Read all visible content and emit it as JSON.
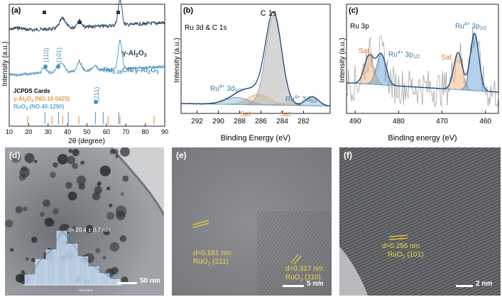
{
  "panel_a": {
    "label": "(a)",
    "ylabel": "Intensity (a.u.)",
    "xlabel": "2θ (degree)",
    "xticks": [
      "10",
      "20",
      "30",
      "40",
      "50",
      "60",
      "70",
      "80",
      "90"
    ],
    "legend_top_prefix": "γ-Al",
    "legend_top_sub1": "2",
    "legend_top_mid": "O",
    "legend_top_sub2": "3",
    "legend_bottom_prefix": "Ru",
    "legend_bottom_sub": "0.38",
    "legend_bottom_suffix": "CN/γ-Al",
    "legend_bottom_sub2": "2",
    "legend_bottom_mid": "O",
    "legend_bottom_sub3": "3",
    "peak_110": "(110)",
    "peak_101": "(101)",
    "peak_211": "(211)",
    "jcpds_title": "JCPDS Cards",
    "jcpds_al_prefix": "γ-Al",
    "jcpds_al_sub1": "2",
    "jcpds_al_mid": "O",
    "jcpds_al_sub2": "3",
    "jcpds_al_card": " (NO.10-0425)",
    "jcpds_ru_prefix": "RuO",
    "jcpds_ru_sub": "2",
    "jcpds_ru_card": " (NO.40-1290)",
    "colors": {
      "top": "#1f3a5a",
      "bottom": "#4b92bd",
      "al_cards": "#e09a3c",
      "ru_cards": "#5aa9d6"
    }
  },
  "panel_b": {
    "label": "(b)",
    "title": "Ru 3d & C 1s",
    "c1s": "C 1s",
    "ru32_prefix": "Ru",
    "ru32_sup": "4+",
    "ru32_text": " 3d",
    "ru32_sub": "3/2",
    "ru52_prefix": "Ru",
    "ru52_sup": "4+",
    "ru52_text": " 3d",
    "ru52_sub": "5/2",
    "sat1": "Sat.",
    "sat2": "Sat.",
    "xlabel": "Binding Energy (eV)",
    "xticks": [
      "292",
      "290",
      "288",
      "286",
      "284",
      "282"
    ]
  },
  "panel_c": {
    "label": "(c)",
    "title": "Ru 3p",
    "sat1": "Sat.",
    "sat2": "Sat.",
    "ru12_prefix": "Ru",
    "ru12_sup": "4+",
    "ru12_text": " 3p",
    "ru12_sub": "1/2",
    "ru32_prefix": "Ru",
    "ru32_sup": "4+",
    "ru32_text": " 3p",
    "ru32_sub": "3/2",
    "xlabel": "Binding energy (eV)",
    "xticks": [
      "490",
      "480",
      "470",
      "460"
    ]
  },
  "panel_d": {
    "label": "(d)",
    "size_text": "d= 20.4 ± 0.7 nm",
    "hist_xlabel": "Size (nm)",
    "scale": "50 nm",
    "hist_values": [
      0.18,
      0.45,
      0.62,
      0.95,
      0.72,
      0.5,
      0.32,
      0.2,
      0.1
    ]
  },
  "panel_e": {
    "label": "(e)",
    "d1": "d=0.161 nm",
    "p1_prefix": "RuO",
    "p1_sub": "2",
    "p1_hkl": " (211)",
    "d2": "d=0.317 nm",
    "p2_prefix": "RuO",
    "p2_sub": "2",
    "p2_hkl": " (110)",
    "scale": "5 nm"
  },
  "panel_f": {
    "label": "(f)",
    "d1": "d=0.256 nm",
    "p1_prefix": "RuO",
    "p1_sub": "2",
    "p1_hkl": " (101)",
    "scale": "2 nm"
  }
}
